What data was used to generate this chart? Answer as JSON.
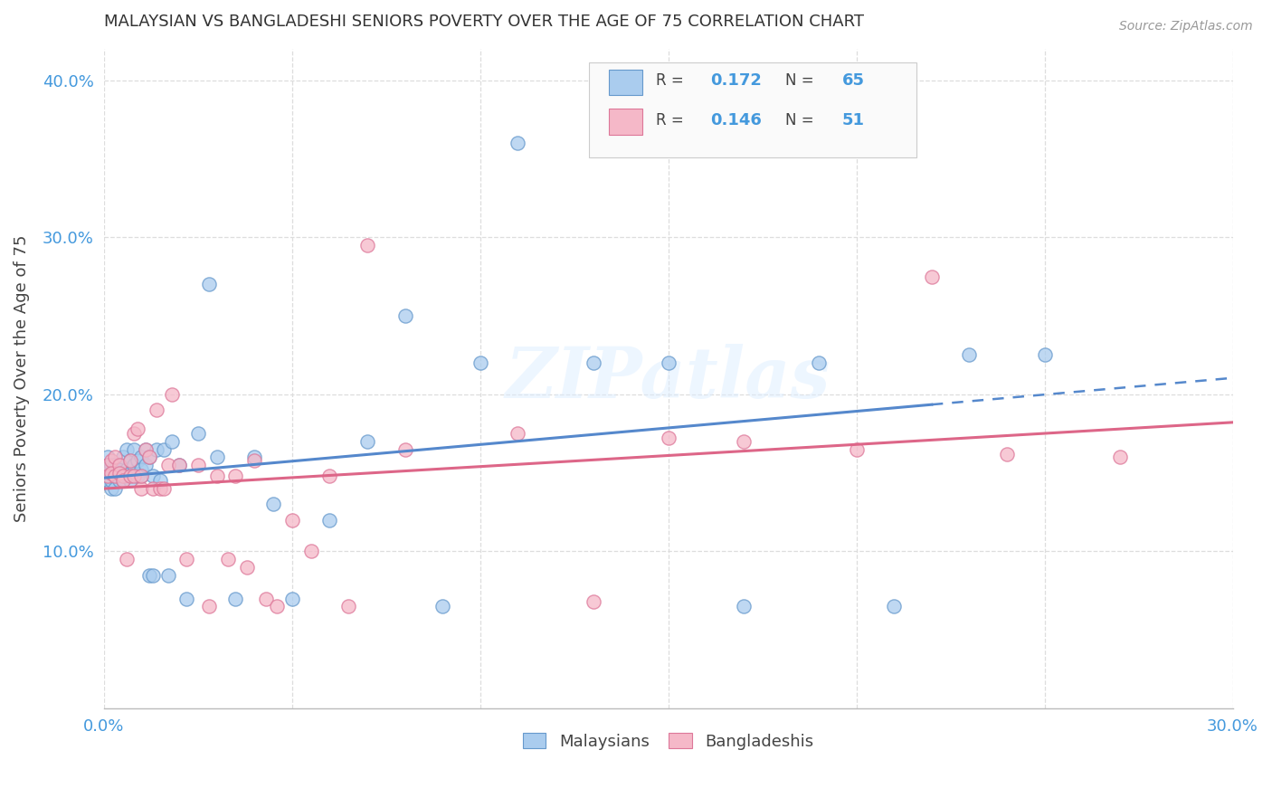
{
  "title": "MALAYSIAN VS BANGLADESHI SENIORS POVERTY OVER THE AGE OF 75 CORRELATION CHART",
  "source": "Source: ZipAtlas.com",
  "ylabel": "Seniors Poverty Over the Age of 75",
  "xlim": [
    0.0,
    0.3
  ],
  "ylim": [
    0.0,
    0.42
  ],
  "xticks": [
    0.0,
    0.05,
    0.1,
    0.15,
    0.2,
    0.25,
    0.3
  ],
  "yticks": [
    0.1,
    0.2,
    0.3,
    0.4
  ],
  "r_malaysian": 0.172,
  "n_malaysian": 65,
  "r_bangladeshi": 0.146,
  "n_bangladeshi": 51,
  "color_malaysian": "#aaccee",
  "color_bangladeshi": "#f5b8c8",
  "edge_malaysian": "#6699cc",
  "edge_bangladeshi": "#dd7799",
  "line_malaysian": "#5588cc",
  "line_bangladeshi": "#dd6688",
  "watermark": "ZIPatlas",
  "background_color": "#ffffff",
  "grid_color": "#dddddd",
  "malaysian_x": [
    0.001,
    0.001,
    0.001,
    0.001,
    0.002,
    0.002,
    0.002,
    0.002,
    0.003,
    0.003,
    0.003,
    0.003,
    0.004,
    0.004,
    0.004,
    0.005,
    0.005,
    0.005,
    0.005,
    0.006,
    0.006,
    0.006,
    0.007,
    0.007,
    0.007,
    0.008,
    0.008,
    0.009,
    0.009,
    0.01,
    0.01,
    0.01,
    0.011,
    0.011,
    0.012,
    0.012,
    0.013,
    0.013,
    0.014,
    0.015,
    0.016,
    0.017,
    0.018,
    0.02,
    0.022,
    0.025,
    0.028,
    0.03,
    0.035,
    0.04,
    0.045,
    0.05,
    0.06,
    0.07,
    0.08,
    0.09,
    0.1,
    0.11,
    0.13,
    0.15,
    0.17,
    0.19,
    0.21,
    0.23,
    0.25
  ],
  "malaysian_y": [
    0.16,
    0.15,
    0.145,
    0.155,
    0.155,
    0.15,
    0.14,
    0.145,
    0.155,
    0.148,
    0.14,
    0.152,
    0.155,
    0.148,
    0.145,
    0.16,
    0.15,
    0.148,
    0.145,
    0.165,
    0.148,
    0.152,
    0.158,
    0.145,
    0.15,
    0.165,
    0.155,
    0.158,
    0.148,
    0.16,
    0.152,
    0.148,
    0.165,
    0.155,
    0.085,
    0.16,
    0.085,
    0.148,
    0.165,
    0.145,
    0.165,
    0.085,
    0.17,
    0.155,
    0.07,
    0.175,
    0.27,
    0.16,
    0.07,
    0.16,
    0.13,
    0.07,
    0.12,
    0.17,
    0.25,
    0.065,
    0.22,
    0.36,
    0.22,
    0.22,
    0.065,
    0.22,
    0.065,
    0.225,
    0.225
  ],
  "bangladeshi_x": [
    0.001,
    0.001,
    0.002,
    0.002,
    0.003,
    0.003,
    0.004,
    0.004,
    0.005,
    0.005,
    0.006,
    0.007,
    0.007,
    0.008,
    0.008,
    0.009,
    0.01,
    0.01,
    0.011,
    0.012,
    0.013,
    0.014,
    0.015,
    0.016,
    0.017,
    0.018,
    0.02,
    0.022,
    0.025,
    0.028,
    0.03,
    0.033,
    0.035,
    0.038,
    0.04,
    0.043,
    0.046,
    0.05,
    0.055,
    0.06,
    0.065,
    0.07,
    0.08,
    0.11,
    0.13,
    0.15,
    0.17,
    0.2,
    0.22,
    0.24,
    0.27
  ],
  "bangladeshi_y": [
    0.155,
    0.148,
    0.158,
    0.15,
    0.16,
    0.148,
    0.155,
    0.15,
    0.148,
    0.145,
    0.095,
    0.158,
    0.148,
    0.175,
    0.148,
    0.178,
    0.14,
    0.148,
    0.165,
    0.16,
    0.14,
    0.19,
    0.14,
    0.14,
    0.155,
    0.2,
    0.155,
    0.095,
    0.155,
    0.065,
    0.148,
    0.095,
    0.148,
    0.09,
    0.158,
    0.07,
    0.065,
    0.12,
    0.1,
    0.148,
    0.065,
    0.295,
    0.165,
    0.175,
    0.068,
    0.172,
    0.17,
    0.165,
    0.275,
    0.162,
    0.16
  ]
}
